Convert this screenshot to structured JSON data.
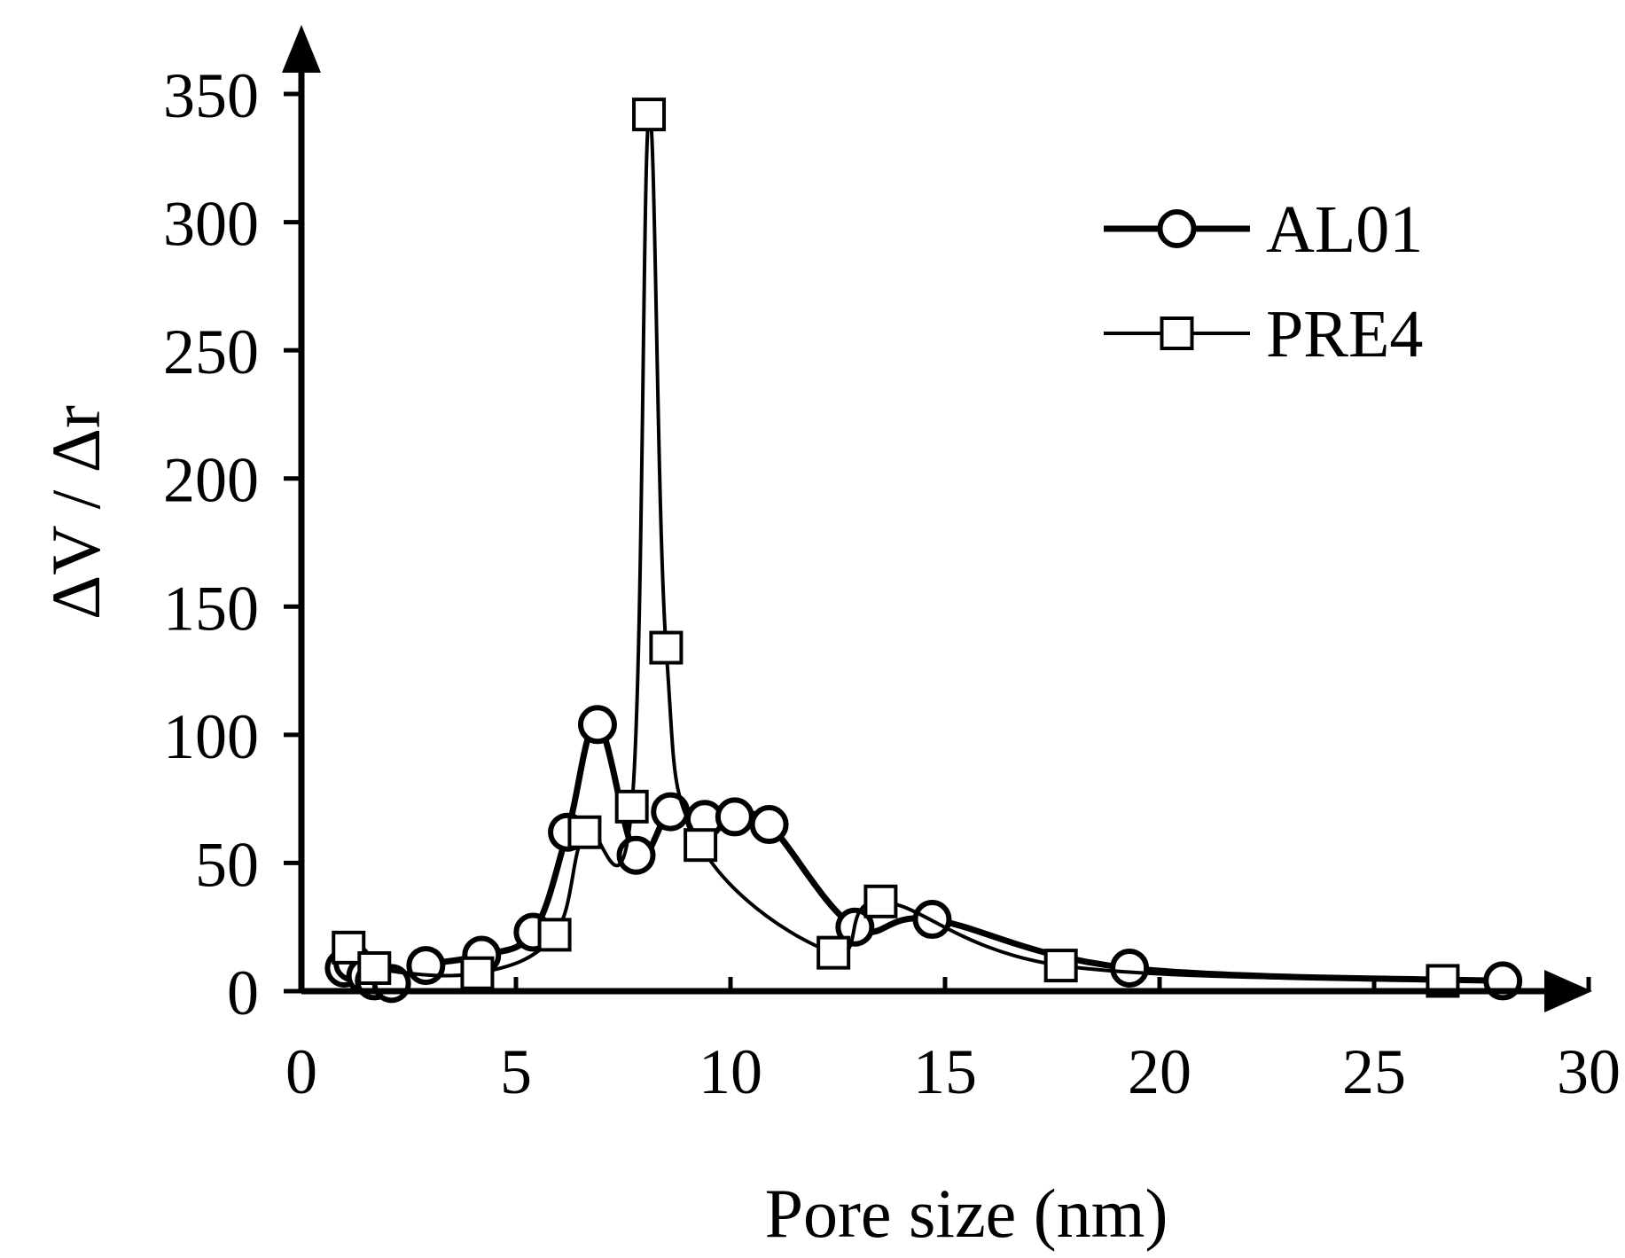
{
  "chart_data": {
    "type": "line",
    "title": "",
    "xlabel": "Pore size (nm)",
    "ylabel": "ΔV / Δr",
    "xlim": [
      0,
      30
    ],
    "ylim": [
      0,
      350
    ],
    "xticks": [
      0,
      5,
      10,
      15,
      20,
      25,
      30
    ],
    "yticks": [
      0,
      50,
      100,
      150,
      200,
      250,
      300,
      350
    ],
    "grid": false,
    "legend_position": "top-right",
    "series": [
      {
        "name": "AL01",
        "marker": "circle",
        "line": "thick",
        "color": "#000000",
        "x": [
          1.0,
          1.2,
          1.5,
          1.7,
          2.1,
          2.9,
          4.2,
          5.4,
          6.2,
          6.9,
          7.8,
          8.6,
          9.4,
          10.1,
          10.9,
          12.9,
          14.7,
          19.3,
          28.0
        ],
        "y": [
          9,
          11,
          6,
          4,
          3,
          10,
          14,
          23,
          62,
          104,
          53,
          70,
          67,
          68,
          65,
          25,
          28,
          9,
          4
        ]
      },
      {
        "name": "PRE4",
        "marker": "square",
        "line": "thin",
        "color": "#000000",
        "x": [
          1.1,
          1.7,
          4.1,
          5.9,
          6.6,
          7.7,
          8.1,
          8.5,
          9.3,
          12.4,
          13.5,
          17.7,
          26.6
        ],
        "y": [
          17,
          9,
          7,
          22,
          62,
          72,
          342,
          134,
          57,
          15,
          35,
          10,
          4
        ]
      }
    ]
  }
}
